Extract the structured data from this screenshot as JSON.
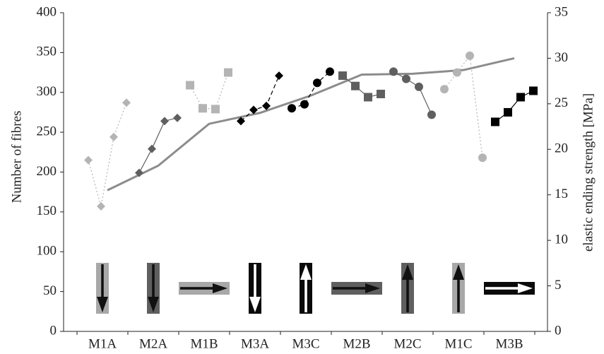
{
  "chart_data": {
    "type": "line",
    "title": "",
    "xlabel": "",
    "ylabel": "Number of fibres",
    "y2label": "elastic ending strength [MPa]",
    "ylim": [
      0,
      400
    ],
    "y2lim": [
      0,
      35
    ],
    "yticks": [
      0,
      50,
      100,
      150,
      200,
      250,
      300,
      350,
      400
    ],
    "y2ticks": [
      0,
      5,
      10,
      15,
      20,
      25,
      30,
      35
    ],
    "categories": [
      "M1A",
      "M2A",
      "M1B",
      "M3A",
      "M3C",
      "M2B",
      "M2C",
      "M1C",
      "M3B"
    ],
    "grid": false,
    "strength_line": {
      "axis": "right",
      "color": "#8c8c8c",
      "values": [
        15.5,
        18.2,
        22.8,
        24.0,
        25.9,
        28.2,
        28.3,
        28.7,
        30.0
      ]
    },
    "fibre_series": [
      {
        "category": "M1A",
        "marker": "diamond",
        "color": "#b4b4b4",
        "line": "dotted",
        "values": [
          215,
          157,
          244,
          287
        ]
      },
      {
        "category": "M2A",
        "marker": "diamond",
        "color": "#5f5f5f",
        "line": "solid",
        "values": [
          199,
          229,
          264,
          268
        ]
      },
      {
        "category": "M1B",
        "marker": "square",
        "color": "#b4b4b4",
        "line": "dotted",
        "values": [
          309,
          280,
          279,
          325
        ]
      },
      {
        "category": "M3A",
        "marker": "diamond",
        "color": "#000000",
        "line": "dashed",
        "values": [
          264,
          278,
          283,
          321
        ]
      },
      {
        "category": "M3C",
        "marker": "circle",
        "color": "#000000",
        "line": "dashed",
        "values": [
          280,
          285,
          312,
          326
        ]
      },
      {
        "category": "M2B",
        "marker": "square",
        "color": "#5f5f5f",
        "line": "solid",
        "values": [
          321,
          308,
          294,
          298
        ]
      },
      {
        "category": "M2C",
        "marker": "circle",
        "color": "#5f5f5f",
        "line": "solid",
        "values": [
          326,
          317,
          307,
          272
        ]
      },
      {
        "category": "M1C",
        "marker": "circle",
        "color": "#b4b4b4",
        "line": "dotted",
        "values": [
          304,
          325,
          346,
          218
        ]
      },
      {
        "category": "M3B",
        "marker": "square",
        "color": "#000000",
        "line": "solid",
        "values": [
          263,
          275,
          294,
          302
        ]
      }
    ],
    "orientation_icons": [
      {
        "category": "M1A",
        "orientation": "vertical",
        "bar_color": "#a8a8a8",
        "arrow": "down",
        "arrow_style": "black"
      },
      {
        "category": "M2A",
        "orientation": "vertical",
        "bar_color": "#5f5f5f",
        "arrow": "down",
        "arrow_style": "black"
      },
      {
        "category": "M1B",
        "orientation": "horizontal",
        "bar_color": "#a8a8a8",
        "arrow": "right",
        "arrow_style": "black"
      },
      {
        "category": "M3A",
        "orientation": "vertical",
        "bar_color": "#0a0a0a",
        "arrow": "down",
        "arrow_style": "white"
      },
      {
        "category": "M3C",
        "orientation": "vertical",
        "bar_color": "#0a0a0a",
        "arrow": "up",
        "arrow_style": "white"
      },
      {
        "category": "M2B",
        "orientation": "horizontal",
        "bar_color": "#5f5f5f",
        "arrow": "right",
        "arrow_style": "black"
      },
      {
        "category": "M2C",
        "orientation": "vertical",
        "bar_color": "#5f5f5f",
        "arrow": "up",
        "arrow_style": "black"
      },
      {
        "category": "M1C",
        "orientation": "vertical",
        "bar_color": "#a8a8a8",
        "arrow": "up",
        "arrow_style": "black"
      },
      {
        "category": "M3B",
        "orientation": "horizontal",
        "bar_color": "#0a0a0a",
        "arrow": "right",
        "arrow_style": "white"
      }
    ]
  }
}
